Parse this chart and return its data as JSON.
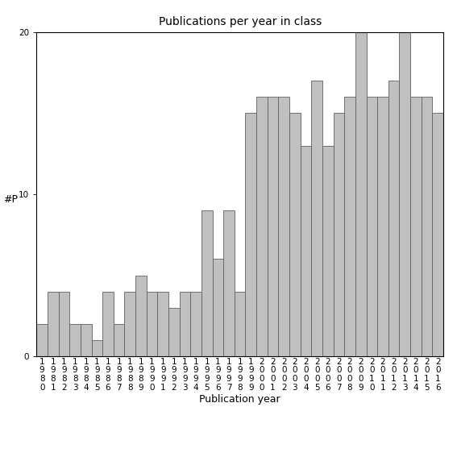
{
  "title": "Publications per year in class",
  "xlabel": "Publication year",
  "ylabel": "#P",
  "years": [
    "1980",
    "1981",
    "1982",
    "1983",
    "1984",
    "1985",
    "1986",
    "1987",
    "1988",
    "1989",
    "1990",
    "1991",
    "1992",
    "1993",
    "1994",
    "1995",
    "1996",
    "1997",
    "1998",
    "1999",
    "2000",
    "2001",
    "2002",
    "2003",
    "2004",
    "2005",
    "2006",
    "2007",
    "2008",
    "2009",
    "2010",
    "2011",
    "2012",
    "2013",
    "2014",
    "2015",
    "2016"
  ],
  "values": [
    2,
    4,
    4,
    2,
    2,
    1,
    4,
    2,
    4,
    5,
    4,
    4,
    3,
    4,
    4,
    9,
    6,
    9,
    4,
    15,
    16,
    16,
    16,
    15,
    13,
    17,
    13,
    15,
    16,
    20,
    16,
    16,
    17,
    20,
    16,
    16,
    15
  ],
  "bar_color": "#c0c0c0",
  "bar_edge_color": "#606060",
  "ylim": [
    0,
    20
  ],
  "yticks": [
    0,
    10,
    20
  ],
  "background_color": "#ffffff",
  "title_fontsize": 10,
  "axis_fontsize": 9,
  "tick_fontsize": 7.5
}
